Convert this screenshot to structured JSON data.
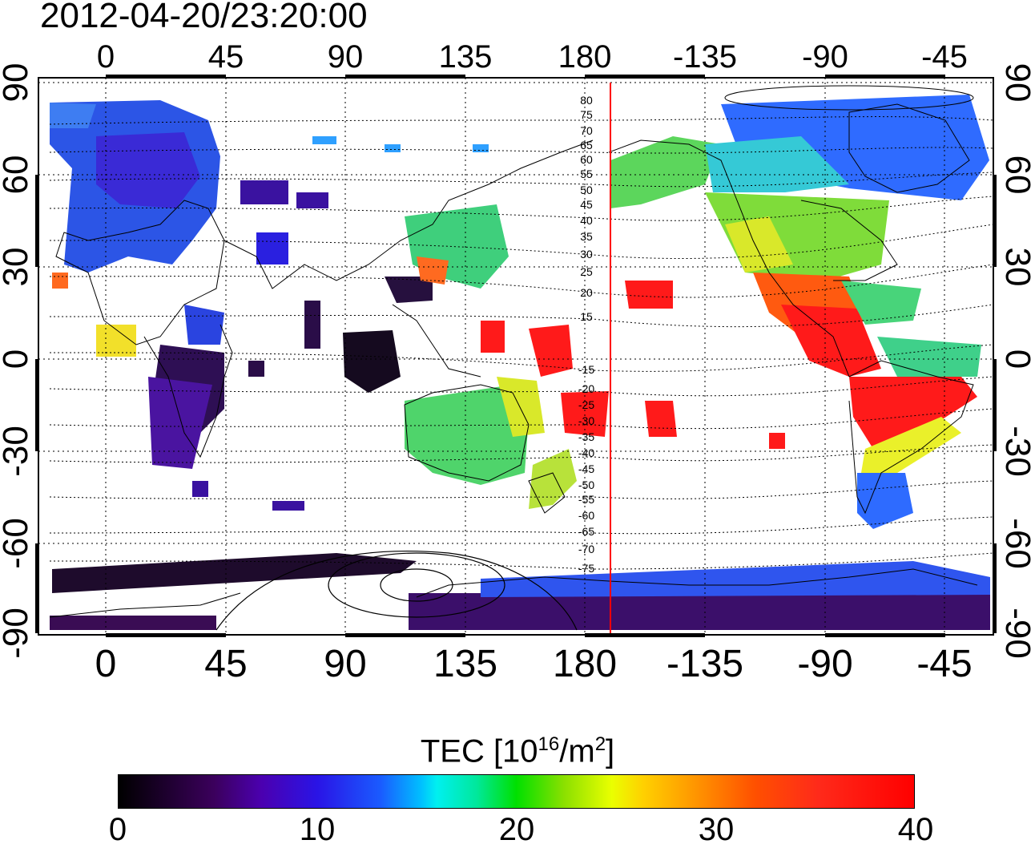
{
  "timestamp": "2012-04-20/23:20:00",
  "map": {
    "longitude_labels": [
      "0",
      "45",
      "90",
      "135",
      "180",
      "-135",
      "-90",
      "-45"
    ],
    "latitude_labels": [
      "90",
      "60",
      "30",
      "0",
      "-30",
      "-60",
      "-90"
    ],
    "magnetic_latitude_labels": [
      "80",
      "75",
      "70",
      "65",
      "60",
      "55",
      "50",
      "45",
      "40",
      "35",
      "30",
      "25",
      "20",
      "15",
      "-15",
      "-20",
      "-25",
      "-30",
      "-35",
      "-40",
      "-45",
      "-50",
      "-55",
      "-60",
      "-65",
      "-70",
      "-75"
    ],
    "meridian_line_color": "#ff0000"
  },
  "colorbar": {
    "title_prefix": "TEC  [10",
    "title_exp1": "16",
    "title_mid": "/m",
    "title_exp2": "2",
    "title_suffix": "]",
    "tick_labels": [
      "0",
      "10",
      "20",
      "30",
      "40"
    ],
    "range": [
      0,
      40
    ],
    "colors": [
      "#000000",
      "#4b00b0",
      "#2a14e6",
      "#00f0f0",
      "#00e000",
      "#eaff00",
      "#ff9a00",
      "#ff0000"
    ]
  }
}
